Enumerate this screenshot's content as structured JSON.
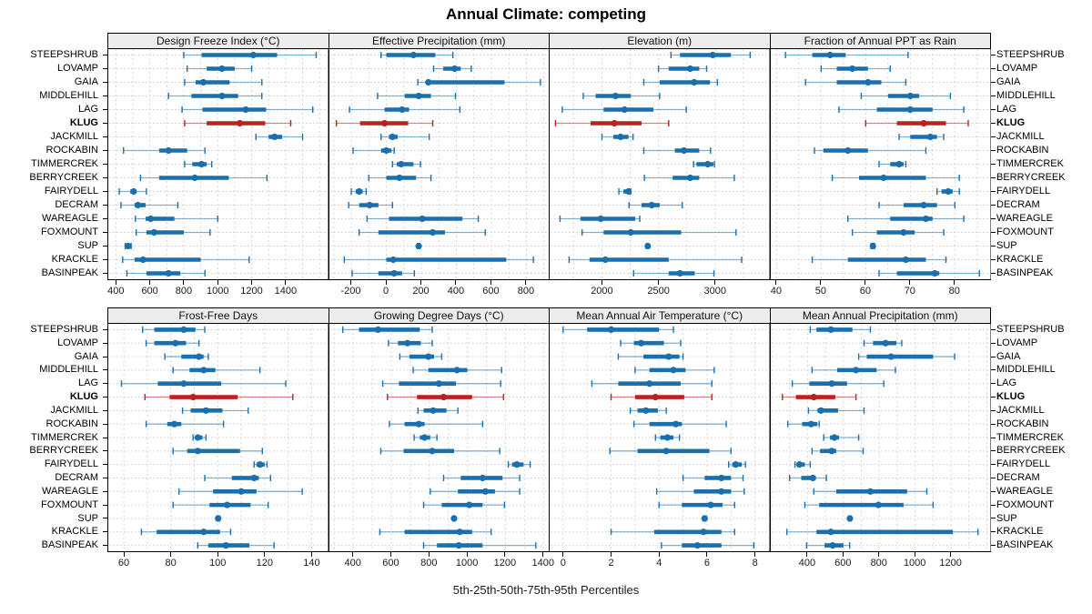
{
  "colors": {
    "normal": "#1a6faf",
    "highlight": "#b8241d",
    "strip_bg": "#ececec",
    "panel_border": "#000000",
    "grid": "#d6d6d6",
    "row_guide": "#c6ccd2",
    "text": "#000000",
    "tick_text": "#1a1a1a"
  },
  "chart_data": {
    "type": "percentile_interval_dotplot",
    "title": "Annual Climate: competing",
    "xlabel": "5th-25th-50th-75th-95th Percentiles",
    "grid": "on",
    "legend_position": "none",
    "percentile_labels": [
      "5th",
      "25th",
      "50th",
      "75th",
      "95th"
    ],
    "highlight_site": "KLUG",
    "sites": [
      "STEEPSHRUB",
      "LOVAMP",
      "GAIA",
      "MIDDLEHILL",
      "LAG",
      "KLUG",
      "JACKMILL",
      "ROCKABIN",
      "TIMMERCREK",
      "BERRYCREEK",
      "FAIRYDELL",
      "DECRAM",
      "WAREAGLE",
      "FOXMOUNT",
      "SUP",
      "KRACKLE",
      "BASINPEAK"
    ],
    "panels": [
      {
        "title": "Design Freeze Index (°C)",
        "xlim": [
          350,
          1650
        ],
        "ticks": [
          400,
          600,
          800,
          1000,
          1200,
          1400
        ],
        "grid_step": 100,
        "values": [
          [
            800,
            905,
            1210,
            1350,
            1580
          ],
          [
            820,
            935,
            1025,
            1100,
            1200
          ],
          [
            805,
            870,
            915,
            1070,
            1260
          ],
          [
            710,
            845,
            1025,
            1120,
            1260
          ],
          [
            790,
            910,
            1165,
            1285,
            1560
          ],
          [
            805,
            935,
            1130,
            1280,
            1430
          ],
          [
            1225,
            1300,
            1335,
            1380,
            1500
          ],
          [
            445,
            655,
            710,
            820,
            925
          ],
          [
            805,
            850,
            905,
            935,
            965
          ],
          [
            545,
            655,
            865,
            1065,
            1290
          ],
          [
            420,
            485,
            505,
            520,
            580
          ],
          [
            430,
            510,
            530,
            575,
            765
          ],
          [
            515,
            575,
            605,
            745,
            1000
          ],
          [
            520,
            580,
            625,
            800,
            955
          ],
          [
            455,
            466,
            472,
            478,
            490
          ],
          [
            440,
            510,
            560,
            900,
            1185
          ],
          [
            465,
            580,
            710,
            780,
            925
          ]
        ]
      },
      {
        "title": "Effective Precipitation (mm)",
        "xlim": [
          -330,
          930
        ],
        "ticks": [
          -200,
          0,
          200,
          400,
          600,
          800
        ],
        "grid_step": 100,
        "values": [
          [
            -30,
            0,
            155,
            280,
            380
          ],
          [
            270,
            325,
            390,
            425,
            485
          ],
          [
            180,
            230,
            240,
            675,
            880
          ],
          [
            -50,
            105,
            185,
            255,
            395
          ],
          [
            -210,
            -10,
            90,
            130,
            420
          ],
          [
            -285,
            -150,
            -10,
            125,
            265
          ],
          [
            -30,
            15,
            35,
            65,
            245
          ],
          [
            -190,
            -30,
            0,
            30,
            45
          ],
          [
            35,
            60,
            85,
            155,
            195
          ],
          [
            -100,
            0,
            75,
            170,
            255
          ],
          [
            -200,
            -175,
            -155,
            -135,
            -115
          ],
          [
            -215,
            -155,
            -95,
            -45,
            35
          ],
          [
            -110,
            15,
            205,
            435,
            525
          ],
          [
            -155,
            -45,
            265,
            335,
            565
          ],
          [
            178,
            182,
            185,
            188,
            192
          ],
          [
            -240,
            0,
            40,
            685,
            840
          ],
          [
            -195,
            -45,
            45,
            90,
            160
          ]
        ]
      },
      {
        "title": "Elevation (m)",
        "xlim": [
          1530,
          3480
        ],
        "ticks": [
          2000,
          2500,
          3000
        ],
        "grid_step": 250,
        "values": [
          [
            2610,
            2690,
            2980,
            3140,
            3310
          ],
          [
            2500,
            2590,
            2780,
            2860,
            2925
          ],
          [
            2370,
            2510,
            2815,
            2955,
            3020
          ],
          [
            1835,
            1945,
            2120,
            2255,
            2510
          ],
          [
            1650,
            2015,
            2200,
            2455,
            2745
          ],
          [
            1590,
            1900,
            2110,
            2350,
            2590
          ],
          [
            2000,
            2100,
            2165,
            2235,
            2275
          ],
          [
            2370,
            2645,
            2725,
            2860,
            2960
          ],
          [
            2810,
            2835,
            2935,
            2985,
            2995
          ],
          [
            2375,
            2625,
            2780,
            2860,
            3170
          ],
          [
            2150,
            2190,
            2235,
            2245,
            2255
          ],
          [
            2240,
            2350,
            2440,
            2510,
            2710
          ],
          [
            1630,
            1810,
            1990,
            2295,
            2335
          ],
          [
            1825,
            2015,
            2255,
            2700,
            3185
          ],
          [
            2395,
            2400,
            2405,
            2408,
            2412
          ],
          [
            1710,
            1890,
            2030,
            2590,
            3235
          ],
          [
            2280,
            2590,
            2690,
            2820,
            2990
          ]
        ]
      },
      {
        "title": "Fraction of Annual PPT as Rain",
        "xlim": [
          38.5,
          88
        ],
        "ticks": [
          40,
          50,
          60,
          70,
          80
        ],
        "grid_step": 5,
        "values": [
          [
            42,
            48,
            52,
            55.5,
            69.5
          ],
          [
            50,
            53.5,
            57,
            60.5,
            65.5
          ],
          [
            46.5,
            53.5,
            60.5,
            63.5,
            69
          ],
          [
            59,
            65,
            70,
            72,
            79
          ],
          [
            54,
            62.5,
            70,
            75,
            82
          ],
          [
            60,
            67,
            73,
            78,
            83
          ],
          [
            67.5,
            70,
            74.5,
            76,
            77.5
          ],
          [
            48.5,
            50.5,
            56,
            60.5,
            73.5
          ],
          [
            63,
            65.5,
            67.5,
            68.5,
            69
          ],
          [
            52.5,
            58.5,
            64,
            73.5,
            81
          ],
          [
            76,
            77,
            78.5,
            79.5,
            81
          ],
          [
            63,
            68.5,
            73,
            76,
            80
          ],
          [
            56,
            65.5,
            73.5,
            75,
            82
          ],
          [
            57,
            62.5,
            68.5,
            71,
            77.5
          ],
          [
            61.2,
            61.4,
            61.6,
            61.8,
            62
          ],
          [
            48,
            56,
            69,
            73.5,
            78
          ],
          [
            63,
            67,
            75.5,
            76.5,
            85.5
          ]
        ]
      },
      {
        "title": "Frost-Free Days",
        "xlim": [
          53,
          147
        ],
        "ticks": [
          60,
          80,
          100,
          120,
          140
        ],
        "grid_step": 10,
        "values": [
          [
            68,
            73,
            85.5,
            90.5,
            94.5
          ],
          [
            69.5,
            73,
            82,
            86.5,
            92
          ],
          [
            77.5,
            84.5,
            92,
            94,
            96
          ],
          [
            81,
            88,
            94,
            99,
            118
          ],
          [
            59,
            74.5,
            85.5,
            101.5,
            129
          ],
          [
            69,
            79.5,
            89.5,
            108.5,
            132
          ],
          [
            85,
            88.5,
            95,
            102,
            113
          ],
          [
            69.5,
            78.5,
            81.5,
            84.5,
            102.5
          ],
          [
            89.5,
            90.5,
            91.5,
            93.5,
            95
          ],
          [
            81,
            87,
            91.5,
            109.5,
            119
          ],
          [
            115.5,
            116.5,
            118,
            120,
            121
          ],
          [
            94.5,
            106,
            115.5,
            117.5,
            122.5
          ],
          [
            83.5,
            98,
            110,
            116.5,
            136
          ],
          [
            81,
            96.5,
            104,
            114,
            121.5
          ],
          [
            99.6,
            99.9,
            100.2,
            100.5,
            100.8
          ],
          [
            67.5,
            74,
            94,
            101,
            105.5
          ],
          [
            91.5,
            96,
            103.5,
            113.5,
            124
          ]
        ]
      },
      {
        "title": "Growing Degree Days (°C)",
        "xlim": [
          270,
          1430
        ],
        "ticks": [
          400,
          600,
          800,
          1000,
          1200,
          1400
        ],
        "grid_step": 100,
        "values": [
          [
            345,
            430,
            530,
            750,
            815
          ],
          [
            585,
            635,
            685,
            755,
            815
          ],
          [
            645,
            695,
            795,
            825,
            865
          ],
          [
            715,
            795,
            945,
            1000,
            1180
          ],
          [
            555,
            640,
            850,
            940,
            1175
          ],
          [
            580,
            735,
            875,
            1025,
            1190
          ],
          [
            740,
            770,
            820,
            890,
            950
          ],
          [
            590,
            670,
            745,
            775,
            1080
          ],
          [
            720,
            750,
            775,
            805,
            840
          ],
          [
            545,
            665,
            815,
            930,
            1170
          ],
          [
            1215,
            1235,
            1260,
            1295,
            1330
          ],
          [
            875,
            965,
            1080,
            1185,
            1275
          ],
          [
            805,
            950,
            1095,
            1145,
            1275
          ],
          [
            770,
            865,
            1010,
            1080,
            1195
          ],
          [
            924,
            927,
            930,
            933,
            936
          ],
          [
            540,
            670,
            960,
            1025,
            1125
          ],
          [
            770,
            840,
            955,
            1080,
            1360
          ]
        ]
      },
      {
        "title": "Mean Annual Air Temperature (°C)",
        "xlim": [
          -0.6,
          8.6
        ],
        "ticks": [
          0,
          2,
          4,
          6,
          8
        ],
        "grid_step": 1,
        "values": [
          [
            0,
            1,
            2,
            4,
            4.6
          ],
          [
            2.4,
            2.95,
            3.25,
            4.2,
            4.9
          ],
          [
            2.3,
            3.35,
            4.4,
            4.85,
            5.0
          ],
          [
            3.0,
            3.6,
            4.6,
            5.1,
            6.3
          ],
          [
            1.2,
            2.3,
            3.6,
            4.9,
            6.2
          ],
          [
            2.0,
            3.0,
            3.85,
            5.05,
            6.2
          ],
          [
            2.8,
            3.1,
            3.45,
            3.95,
            4.3
          ],
          [
            2.95,
            3.6,
            4.7,
            4.95,
            6.8
          ],
          [
            3.85,
            4.05,
            4.35,
            4.6,
            4.85
          ],
          [
            1.95,
            3.1,
            4.3,
            6.1,
            7.0
          ],
          [
            6.9,
            7.05,
            7.2,
            7.45,
            7.6
          ],
          [
            5.0,
            5.9,
            6.6,
            7.0,
            7.5
          ],
          [
            3.9,
            5.45,
            6.6,
            7.0,
            7.55
          ],
          [
            4.0,
            4.95,
            6.15,
            6.65,
            7.15
          ],
          [
            5.85,
            5.88,
            5.9,
            5.92,
            5.95
          ],
          [
            2.0,
            3.8,
            5.85,
            6.6,
            7.15
          ],
          [
            4.1,
            4.95,
            5.6,
            6.6,
            7.95
          ]
        ]
      },
      {
        "title": "Mean Annual Precipitation (mm)",
        "xlim": [
          190,
          1420
        ],
        "ticks": [
          400,
          600,
          800,
          1000,
          1200
        ],
        "grid_step": 100,
        "values": [
          [
            415,
            450,
            530,
            650,
            750
          ],
          [
            715,
            765,
            835,
            895,
            925
          ],
          [
            685,
            730,
            865,
            1100,
            1220
          ],
          [
            425,
            565,
            670,
            785,
            890
          ],
          [
            315,
            410,
            535,
            620,
            825
          ],
          [
            260,
            335,
            435,
            555,
            670
          ],
          [
            405,
            455,
            475,
            570,
            715
          ],
          [
            290,
            370,
            420,
            455,
            465
          ],
          [
            490,
            525,
            550,
            575,
            685
          ],
          [
            425,
            470,
            535,
            560,
            710
          ],
          [
            330,
            345,
            355,
            385,
            415
          ],
          [
            300,
            365,
            430,
            445,
            505
          ],
          [
            435,
            560,
            750,
            955,
            1065
          ],
          [
            385,
            465,
            795,
            935,
            1100
          ],
          [
            630,
            633,
            636,
            639,
            642
          ],
          [
            285,
            450,
            530,
            1210,
            1350
          ],
          [
            395,
            495,
            540,
            600,
            635
          ]
        ]
      }
    ]
  }
}
